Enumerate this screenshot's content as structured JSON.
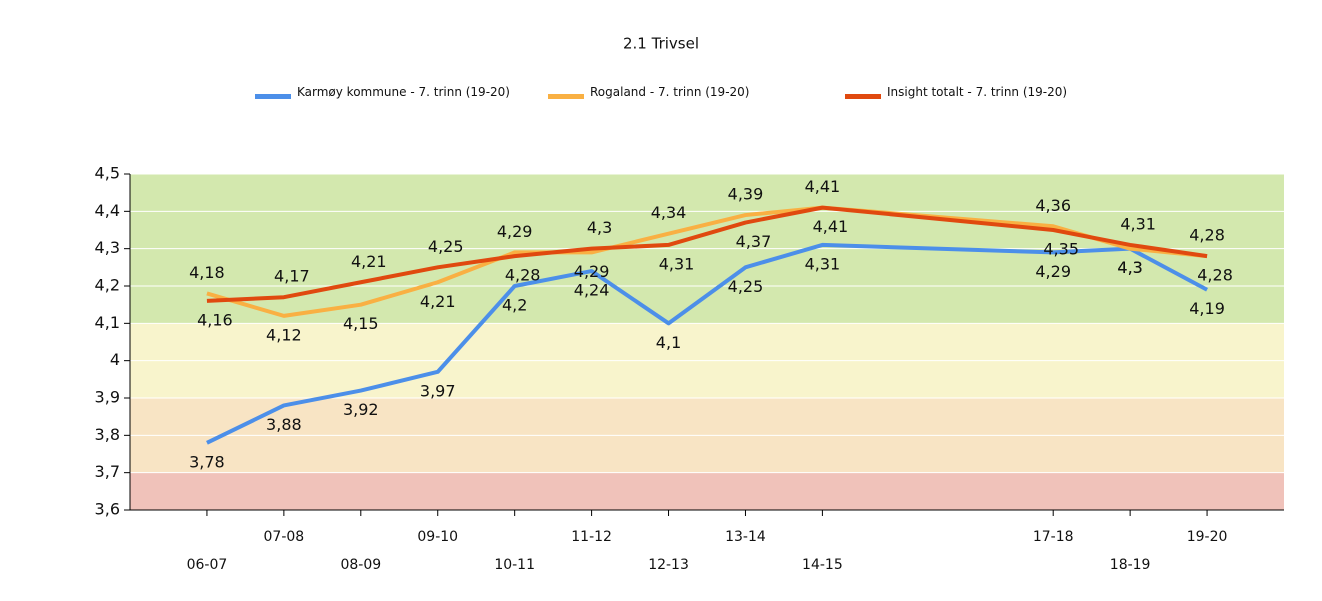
{
  "chart_data": {
    "type": "line",
    "title": "2.1 Trivsel",
    "x": [
      2006,
      2007,
      2008,
      2009,
      2010,
      2011,
      2012,
      2013,
      2014,
      2017,
      2018,
      2019
    ],
    "xlim": [
      2005,
      2020
    ],
    "xticks": [
      {
        "value": 2006,
        "label": "06-07"
      },
      {
        "value": 2007,
        "label": "07-08"
      },
      {
        "value": 2008,
        "label": "08-09"
      },
      {
        "value": 2009,
        "label": "09-10"
      },
      {
        "value": 2010,
        "label": "10-11"
      },
      {
        "value": 2011,
        "label": "11-12"
      },
      {
        "value": 2012,
        "label": "12-13"
      },
      {
        "value": 2013,
        "label": "13-14"
      },
      {
        "value": 2014,
        "label": "14-15"
      },
      {
        "value": 2017,
        "label": "17-18"
      },
      {
        "value": 2018,
        "label": "18-19"
      },
      {
        "value": 2019,
        "label": "19-20"
      }
    ],
    "ylim": [
      3.6,
      4.5
    ],
    "yticks": [
      {
        "value": 3.6,
        "label": "3,6"
      },
      {
        "value": 3.7,
        "label": "3,7"
      },
      {
        "value": 3.8,
        "label": "3,8"
      },
      {
        "value": 3.9,
        "label": "3,9"
      },
      4,
      {
        "value": 4.1,
        "label": "4,1"
      },
      {
        "value": 4.2,
        "label": "4,2"
      },
      {
        "value": 4.3,
        "label": "4,3"
      },
      {
        "value": 4.4,
        "label": "4,4"
      },
      {
        "value": 4.5,
        "label": "4,5"
      }
    ],
    "grid": true,
    "bands": [
      {
        "from": 3.6,
        "to": 3.7,
        "color": "#f0c2ba"
      },
      {
        "from": 3.7,
        "to": 3.9,
        "color": "#f8e4c4"
      },
      {
        "from": 3.9,
        "to": 4.1,
        "color": "#f8f4cc"
      },
      {
        "from": 4.1,
        "to": 4.5,
        "color": "#d3e8ae"
      }
    ],
    "series": [
      {
        "name": "Karmøy kommune - 7. trinn (19-20)",
        "color": "#4c8fe9",
        "values": [
          3.78,
          3.88,
          3.92,
          3.97,
          4.2,
          4.24,
          4.1,
          4.25,
          4.31,
          4.29,
          4.3,
          4.19
        ],
        "value_labels": [
          "3,78",
          "3,88",
          "3,92",
          "3,97",
          "4,2",
          "4,24",
          "4,1",
          "4,25",
          "4,31",
          "4,29",
          "4,3",
          "4,19"
        ]
      },
      {
        "name": "Rogaland - 7. trinn (19-20)",
        "color": "#f9b043",
        "values": [
          4.18,
          4.12,
          4.15,
          4.21,
          4.29,
          4.29,
          4.34,
          4.39,
          4.41,
          4.36,
          4.3,
          4.28
        ],
        "value_labels": [
          "4,18",
          "4,12",
          "4,15",
          "4,21",
          "4,29",
          "4,29",
          "4,34",
          "4,39",
          "4,41",
          "4,36",
          "4,3",
          "4,28"
        ]
      },
      {
        "name": "Insight totalt - 7. trinn (19-20)",
        "color": "#e0490f",
        "values": [
          4.16,
          4.17,
          4.21,
          4.25,
          4.28,
          4.3,
          4.31,
          4.37,
          4.41,
          4.35,
          4.31,
          4.28
        ],
        "value_labels": [
          "4,16",
          "4,17",
          "4,21",
          "4,25",
          "4,28",
          "4,3",
          "4,31",
          "4,37",
          "4,41",
          "4,35",
          "4,31",
          "4,28"
        ]
      }
    ]
  }
}
